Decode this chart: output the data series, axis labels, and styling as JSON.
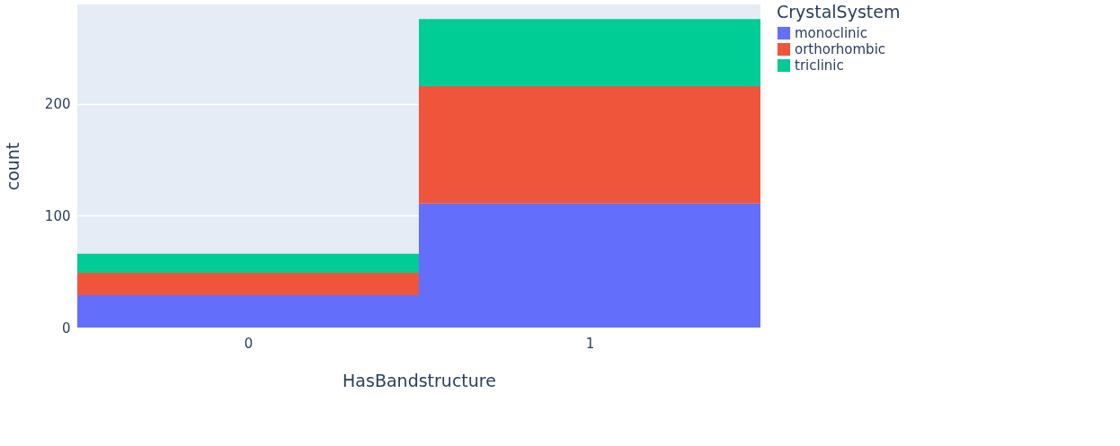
{
  "chart_data": {
    "type": "bar",
    "stacked": true,
    "xlabel": "HasBandstructure",
    "ylabel": "count",
    "legend_title": "CrystalSystem",
    "legend": "top right",
    "grid": "y",
    "categories": [
      "0",
      "1"
    ],
    "series": [
      {
        "name": "monoclinic",
        "color": "#636efa",
        "values": [
          29,
          111
        ]
      },
      {
        "name": "orthorhombic",
        "color": "#ef553b",
        "values": [
          20,
          105
        ]
      },
      {
        "name": "triclinic",
        "color": "#00cc96",
        "values": [
          17,
          60
        ]
      }
    ],
    "ylim": [
      0,
      289
    ],
    "yticks": [
      0,
      100,
      200
    ]
  }
}
